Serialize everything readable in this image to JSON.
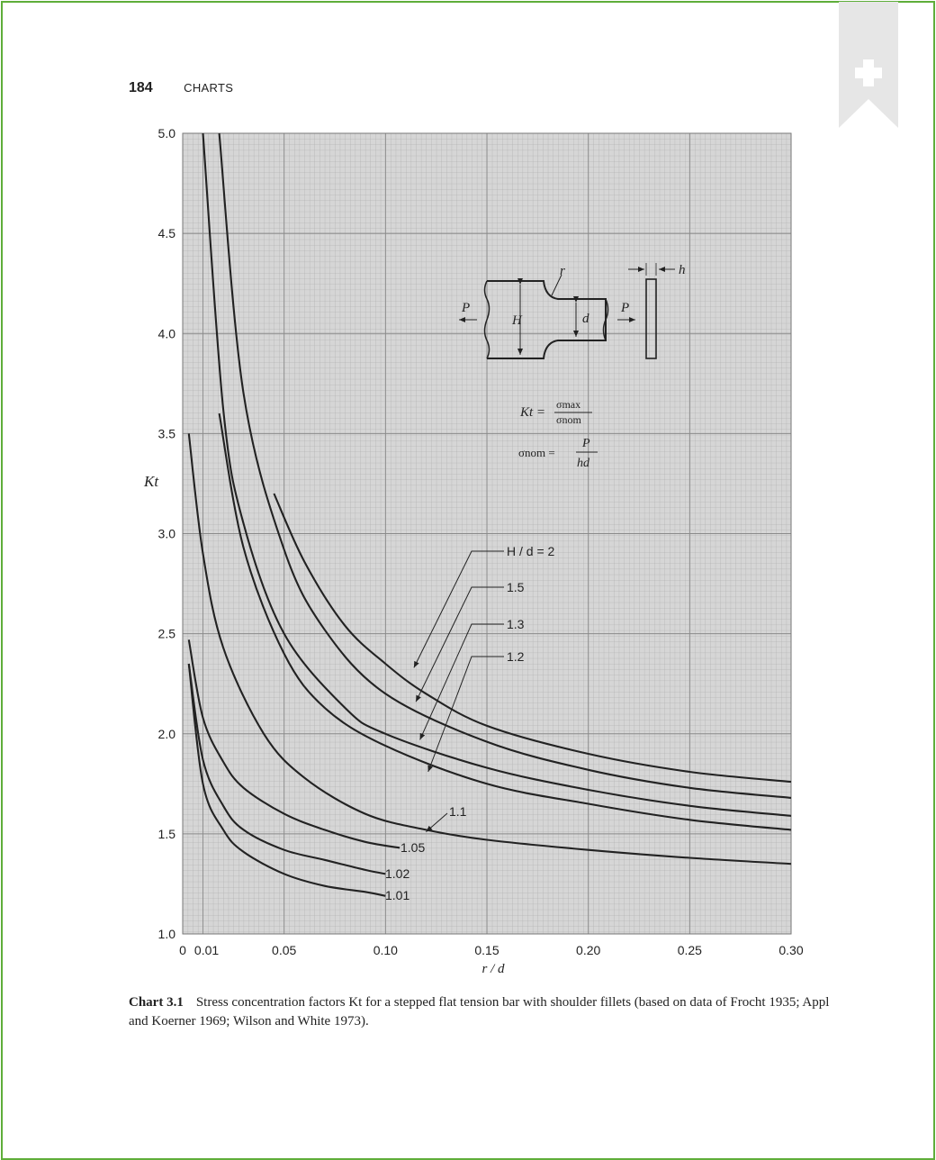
{
  "header": {
    "page_number": "184",
    "section": "CHARTS"
  },
  "chart_data": {
    "type": "line",
    "xlabel": "r / d",
    "ylabel": "Kt",
    "xlim": [
      0,
      0.3
    ],
    "ylim": [
      1.0,
      5.0
    ],
    "x_ticks": [
      "0",
      "0.01",
      "0.05",
      "0.10",
      "0.15",
      "0.20",
      "0.25",
      "0.30"
    ],
    "x_tick_values": [
      0,
      0.01,
      0.05,
      0.1,
      0.15,
      0.2,
      0.25,
      0.3
    ],
    "y_ticks": [
      "1.0",
      "1.5",
      "2.0",
      "2.5",
      "3.0",
      "3.5",
      "4.0",
      "4.5",
      "5.0"
    ],
    "y_tick_values": [
      1.0,
      1.5,
      2.0,
      2.5,
      3.0,
      3.5,
      4.0,
      4.5,
      5.0
    ],
    "grid": true,
    "series": [
      {
        "name": "H / d = 2",
        "x": [
          0.045,
          0.06,
          0.08,
          0.1,
          0.12,
          0.15,
          0.2,
          0.25,
          0.3
        ],
        "y": [
          3.2,
          2.86,
          2.54,
          2.35,
          2.2,
          2.04,
          1.9,
          1.81,
          1.76
        ]
      },
      {
        "name": "1.5",
        "x": [
          0.018,
          0.03,
          0.05,
          0.07,
          0.1,
          0.15,
          0.2,
          0.25,
          0.3
        ],
        "y": [
          5.0,
          3.7,
          2.92,
          2.52,
          2.2,
          1.96,
          1.82,
          1.73,
          1.68
        ]
      },
      {
        "name": "1.3",
        "x": [
          0.01,
          0.02,
          0.03,
          0.05,
          0.08,
          0.1,
          0.15,
          0.2,
          0.25,
          0.3
        ],
        "y": [
          5.0,
          3.62,
          3.05,
          2.5,
          2.13,
          2.0,
          1.83,
          1.72,
          1.64,
          1.59
        ]
      },
      {
        "name": "1.2",
        "x": [
          0.018,
          0.03,
          0.05,
          0.07,
          0.1,
          0.15,
          0.2,
          0.25,
          0.3
        ],
        "y": [
          3.6,
          2.93,
          2.4,
          2.13,
          1.94,
          1.75,
          1.65,
          1.57,
          1.52
        ]
      },
      {
        "name": "1.1",
        "x": [
          0.003,
          0.01,
          0.02,
          0.04,
          0.06,
          0.09,
          0.12,
          0.15,
          0.2,
          0.25,
          0.3
        ],
        "y": [
          3.5,
          2.9,
          2.43,
          2.0,
          1.78,
          1.6,
          1.52,
          1.47,
          1.42,
          1.38,
          1.35
        ]
      },
      {
        "name": "1.05",
        "x": [
          0.003,
          0.01,
          0.02,
          0.03,
          0.05,
          0.07,
          0.09,
          0.107
        ],
        "y": [
          2.47,
          2.08,
          1.86,
          1.73,
          1.6,
          1.52,
          1.46,
          1.43
        ]
      },
      {
        "name": "1.02",
        "x": [
          0.003,
          0.01,
          0.02,
          0.03,
          0.05,
          0.07,
          0.09,
          0.1
        ],
        "y": [
          2.35,
          1.87,
          1.64,
          1.52,
          1.42,
          1.37,
          1.32,
          1.3
        ]
      },
      {
        "name": "1.01",
        "x": [
          0.003,
          0.01,
          0.02,
          0.03,
          0.05,
          0.07,
          0.09,
          0.1
        ],
        "y": [
          2.35,
          1.75,
          1.52,
          1.41,
          1.3,
          1.24,
          1.21,
          1.19
        ]
      }
    ],
    "annotations": {
      "formula_kt_lhs": "Kt =",
      "formula_kt_num": "σmax",
      "formula_kt_den": "σnom",
      "formula_nom_lhs": "σnom =",
      "formula_nom_num": "P",
      "formula_nom_den": "hd",
      "diagram_P_left": "P",
      "diagram_P_right": "P",
      "diagram_H": "H",
      "diagram_d": "d",
      "diagram_r": "r",
      "diagram_h": "h"
    }
  },
  "caption": {
    "label": "Chart 3.1",
    "text": "Stress concentration factors Kt for a stepped flat tension bar with shoulder fillets (based on data of Frocht 1935; Appl and Koerner 1969; Wilson and White 1973)."
  },
  "colors": {
    "frame": "#5fae3a",
    "grid": "#a8a8a8",
    "plot_bg": "#d4d4d4",
    "curve": "#222222",
    "bookmark": "#e6e6e6"
  }
}
